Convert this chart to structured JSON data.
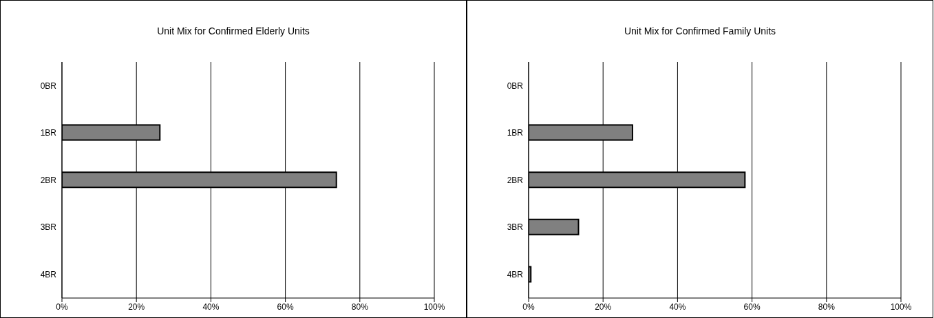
{
  "chart_data": [
    {
      "type": "bar",
      "orientation": "horizontal",
      "title": "Unit Mix for Confirmed Elderly Units",
      "categories": [
        "0BR",
        "1BR",
        "2BR",
        "3BR",
        "4BR"
      ],
      "values": [
        0,
        26.3,
        73.7,
        0,
        0
      ],
      "color": "#808080",
      "xlim": [
        0,
        100
      ],
      "xticks": [
        {
          "value": 0,
          "label": "0%"
        },
        {
          "value": 20,
          "label": "20%"
        },
        {
          "value": 40,
          "label": "40%"
        },
        {
          "value": 60,
          "label": "60%"
        },
        {
          "value": 80,
          "label": "80%"
        },
        {
          "value": 100,
          "label": "100%"
        }
      ],
      "grid": "x"
    },
    {
      "type": "bar",
      "orientation": "horizontal",
      "title": "Unit Mix for Confirmed Family Units",
      "categories": [
        "0BR",
        "1BR",
        "2BR",
        "3BR",
        "4BR"
      ],
      "values": [
        0,
        27.9,
        58.1,
        13.4,
        0.6
      ],
      "color": "#808080",
      "xlim": [
        0,
        100
      ],
      "xticks": [
        {
          "value": 0,
          "label": "0%"
        },
        {
          "value": 20,
          "label": "20%"
        },
        {
          "value": 40,
          "label": "40%"
        },
        {
          "value": 60,
          "label": "60%"
        },
        {
          "value": 80,
          "label": "80%"
        },
        {
          "value": 100,
          "label": "100%"
        }
      ],
      "grid": "x"
    }
  ]
}
